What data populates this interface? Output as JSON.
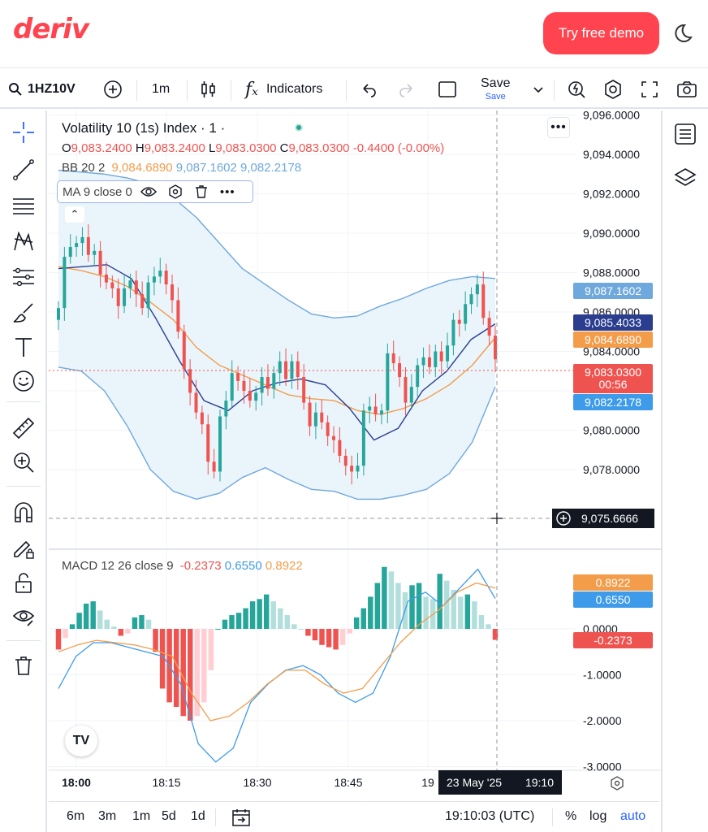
{
  "header": {
    "logo": "deriv",
    "demo_button": "Try free demo"
  },
  "toolbar": {
    "symbol": "1HZ10V",
    "interval": "1m",
    "indicators": "Indicators",
    "save": "Save",
    "save_sub": "Save"
  },
  "legend": {
    "title": "Volatility 10 (1s) Index · 1 ·",
    "o_label": "O",
    "o": "9,083.2400",
    "h_label": "H",
    "h": "9,083.2400",
    "l_label": "L",
    "l": "9,083.0300",
    "c_label": "C",
    "c": "9,083.0300",
    "change": "-0.4400 (-0.00%)",
    "bb_label": "BB 20 2",
    "bb_mid": "9,084.6890",
    "bb_up": "9,087.1602",
    "bb_low": "9,082.2178",
    "ma_label": "MA 9 close 0",
    "macd_label": "MACD 12 26 close 9",
    "macd_hist": "-0.2373",
    "macd_line": "0.6550",
    "macd_signal": "0.8922"
  },
  "price_axis": {
    "ticks": [
      "9,096.0000",
      "9,094.0000",
      "9,092.0000",
      "9,090.0000",
      "9,088.0000",
      "9,086.0000",
      "9,084.0000",
      "9,080.0000",
      "9,078.0000"
    ],
    "labels": {
      "bb_up": "9,087.1602",
      "ma": "9,085.4033",
      "bb_mid": "9,084.6890",
      "last": "9,083.0300",
      "countdown": "00:56",
      "bb_low": "9,082.2178",
      "crosshair": "9,075.6666"
    }
  },
  "macd_axis": {
    "ticks": [
      "0.0000",
      "-1.0000",
      "-2.0000",
      "-3.0000"
    ],
    "labels": {
      "signal": "0.8922",
      "macd": "0.6550",
      "hist": "-0.2373"
    }
  },
  "time_axis": {
    "ticks": [
      "18:00",
      "18:15",
      "18:30",
      "18:45",
      "19"
    ],
    "crosshair_date": "23 May '25",
    "crosshair_time": "19:10"
  },
  "bottom": {
    "ranges": [
      "6m",
      "3m",
      "1m",
      "5d",
      "1d"
    ],
    "clock": "19:10:03 (UTC)",
    "percent": "%",
    "log": "log",
    "auto": "auto"
  },
  "colors": {
    "up": "#26a69a",
    "down": "#ef5350",
    "bb": "#6fa8dc",
    "ma": "#2a3d8f",
    "mid": "#f39c4a",
    "brand": "#ff444f",
    "blue": "#3d9be9"
  },
  "chart_data": [
    {
      "type": "candlestick",
      "title": "Volatility 10 (1s) Index",
      "interval": "1m",
      "ylim": [
        9076.5,
        9096
      ],
      "x": [
        "18:00",
        "18:15",
        "18:30",
        "18:45",
        "19:00"
      ],
      "closes": [
        9086.2,
        9088.8,
        9089.3,
        9089.5,
        9089.8,
        9088.9,
        9089.1,
        9087.9,
        9087.5,
        9087.2,
        9086.3,
        9087.2,
        9087.6,
        9086.9,
        9086.2,
        9087.5,
        9087.8,
        9088.1,
        9087.4,
        9086.6,
        9085.0,
        9083.1,
        9081.9,
        9080.9,
        9080.3,
        9078.4,
        9077.9,
        9080.7,
        9081.5,
        9082.9,
        9082.5,
        9082.0,
        9081.5,
        9081.9,
        9082.7,
        9082.1,
        9082.9,
        9083.5,
        9082.6,
        9083.5,
        9082.7,
        9081.4,
        9080.2,
        9080.9,
        9080.4,
        9079.7,
        9079.5,
        9078.7,
        9078.2,
        9077.9,
        9078.2,
        9081.0,
        9081.2,
        9080.8,
        9081.0,
        9083.9,
        9083.4,
        9082.7,
        9081.4,
        9082.2,
        9083.3,
        9083.7,
        9083.2,
        9084.0,
        9083.5,
        9084.3,
        9085.6,
        9085.4,
        9086.4,
        9086.9,
        9087.4,
        9085.7,
        9084.8,
        9083.6
      ],
      "bb_upper": [
        9093.2,
        9093.1,
        9093.0,
        9092.8,
        9092.5,
        9091.8,
        9090.8,
        9089.5,
        9088.2,
        9087.4,
        9086.6,
        9085.9,
        9085.7,
        9085.8,
        9086.3,
        9086.7,
        9087.2,
        9087.6,
        9087.8,
        9087.7
      ],
      "bb_mid": [
        9088.3,
        9088.1,
        9087.8,
        9087.3,
        9086.5,
        9085.6,
        9084.2,
        9083.3,
        9082.8,
        9082.3,
        9081.8,
        9081.6,
        9081.5,
        9081.0,
        9080.8,
        9081.1,
        9081.6,
        9082.3,
        9083.3,
        9084.7
      ],
      "bb_lower": [
        9083.2,
        9083.0,
        9082.0,
        9080.2,
        9078.0,
        9076.9,
        9076.5,
        9076.8,
        9077.6,
        9078.1,
        9077.5,
        9077.0,
        9076.9,
        9076.5,
        9076.5,
        9076.7,
        9077.0,
        9077.8,
        9079.4,
        9082.2
      ],
      "ma9": [
        9088.2,
        9088.3,
        9088.4,
        9087.7,
        9085.7,
        9083.5,
        9081.5,
        9081.0,
        9082.0,
        9082.4,
        9082.6,
        9082.3,
        9081.1,
        9079.5,
        9080.1,
        9082.0,
        9083.0,
        9084.6,
        9085.4
      ],
      "last": 9083.03
    },
    {
      "type": "macd",
      "title": "MACD 12 26 close 9",
      "ylim": [
        -3.2,
        1.6
      ],
      "histogram": [
        -0.45,
        -0.2,
        0.1,
        0.35,
        0.55,
        0.6,
        0.4,
        0.2,
        0.05,
        -0.15,
        -0.1,
        0.25,
        0.3,
        0.2,
        -0.5,
        -1.3,
        -1.6,
        -1.7,
        -1.9,
        -2.0,
        -1.9,
        -1.6,
        -0.9,
        0.0,
        0.2,
        0.3,
        0.35,
        0.45,
        0.6,
        0.65,
        0.75,
        0.6,
        0.45,
        0.3,
        0.1,
        0.0,
        -0.15,
        -0.25,
        -0.35,
        -0.4,
        -0.45,
        -0.35,
        -0.1,
        0.25,
        0.45,
        0.7,
        1.0,
        1.35,
        1.25,
        1.0,
        0.8,
        0.95,
        1.0,
        0.7,
        0.65,
        1.2,
        1.05,
        0.85,
        0.7,
        0.75,
        0.6,
        0.3,
        0.1,
        -0.24
      ],
      "macd": [
        -1.3,
        -0.6,
        -0.3,
        -0.3,
        -0.4,
        -0.5,
        -0.6,
        -1.2,
        -2.5,
        -2.9,
        -2.6,
        -1.6,
        -1.2,
        -0.9,
        -0.8,
        -1.0,
        -1.4,
        -1.6,
        -1.4,
        -0.6,
        0.6,
        0.8,
        0.5,
        0.9,
        1.3,
        0.66
      ],
      "signal": [
        -0.5,
        -0.35,
        -0.25,
        -0.3,
        -0.35,
        -0.45,
        -0.6,
        -1.4,
        -2.0,
        -1.9,
        -1.6,
        -1.2,
        -0.9,
        -0.9,
        -1.2,
        -1.4,
        -1.3,
        -0.8,
        -0.3,
        0.1,
        0.4,
        0.8,
        1.0,
        0.89
      ]
    }
  ]
}
